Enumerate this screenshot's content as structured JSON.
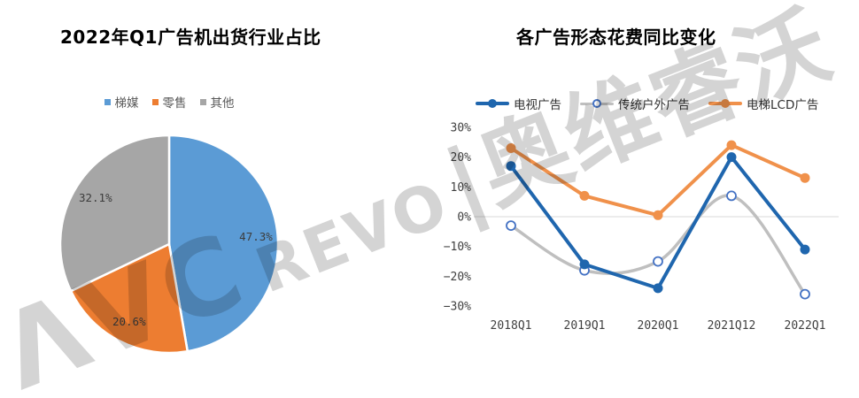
{
  "watermark": {
    "text": "ΛVC REVO|奥维睿沃",
    "part_latin_large": "ΛVC",
    "part_latin_small": "REVO",
    "part_cjk": "|奥维睿沃"
  },
  "chart_data": [
    {
      "type": "pie",
      "title": "2022年Q1广告机出货行业占比",
      "labels": [
        "梯媒",
        "零售",
        "其他"
      ],
      "values": [
        47.3,
        20.6,
        32.1
      ],
      "value_labels": [
        "47.3%",
        "20.6%",
        "32.1%"
      ],
      "colors": [
        "#5B9BD5",
        "#ED7D31",
        "#A6A6A6"
      ],
      "start_angle_deg": 0,
      "direction": "clockwise",
      "legend_position": "top"
    },
    {
      "type": "line",
      "title": "各广告形态花费同比变化",
      "categories": [
        "2018Q1",
        "2019Q1",
        "2020Q1",
        "2021Q12",
        "2022Q1"
      ],
      "series": [
        {
          "name": "电视广告",
          "values": [
            17,
            -16,
            -24,
            20,
            -11
          ],
          "color": "#1F66AE",
          "marker": "filled-circle",
          "smooth": false
        },
        {
          "name": "传统户外广告",
          "values": [
            -3,
            -18,
            -15,
            7,
            -26
          ],
          "color": "#BFBFBF",
          "marker": "open-circle",
          "marker_ring_color": "#4472C4",
          "smooth": true
        },
        {
          "name": "电梯LCD广告",
          "values": [
            23,
            7,
            0.5,
            24,
            13
          ],
          "color": "#F0914B",
          "marker": "filled-circle",
          "smooth": false
        }
      ],
      "ylim": [
        -30,
        30
      ],
      "ytick_step": 10,
      "ytick_labels": [
        "30%",
        "20%",
        "10%",
        "0%",
        "−10%",
        "−20%",
        "−30%"
      ],
      "grid": "zero-line-only",
      "gridline_color": "#D9D9D9",
      "legend_position": "top"
    }
  ]
}
